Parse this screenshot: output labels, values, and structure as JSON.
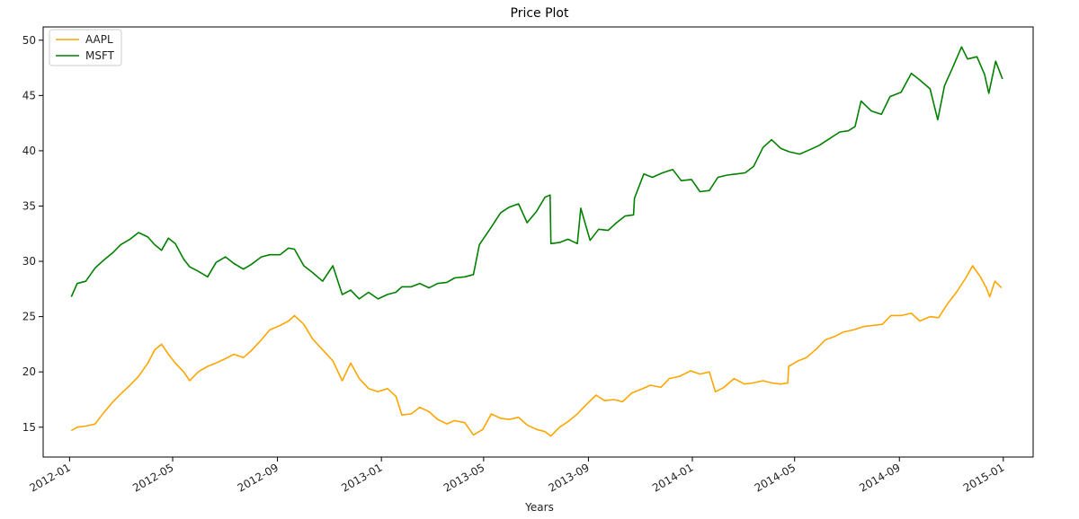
{
  "chart_data": {
    "type": "line",
    "title": "Price Plot",
    "xlabel": "Years",
    "ylabel": "",
    "xlim": [
      "2011-12-01",
      "2015-02-05"
    ],
    "ylim": [
      12.3,
      51.2
    ],
    "x_ticks": [
      "2012-01",
      "2012-05",
      "2012-09",
      "2013-01",
      "2013-05",
      "2013-09",
      "2014-01",
      "2014-05",
      "2014-09",
      "2015-01"
    ],
    "y_ticks": [
      15,
      20,
      25,
      30,
      35,
      40,
      45,
      50
    ],
    "grid": false,
    "legend_position": "top-left",
    "series": [
      {
        "name": "AAPL",
        "color": "#FFA500",
        "points": [
          [
            "2012-01-03",
            14.7
          ],
          [
            "2012-01-10",
            15.0
          ],
          [
            "2012-01-20",
            15.1
          ],
          [
            "2012-01-31",
            15.3
          ],
          [
            "2012-02-10",
            16.3
          ],
          [
            "2012-02-21",
            17.3
          ],
          [
            "2012-03-01",
            18.0
          ],
          [
            "2012-03-12",
            18.8
          ],
          [
            "2012-03-22",
            19.6
          ],
          [
            "2012-04-02",
            20.8
          ],
          [
            "2012-04-10",
            22.0
          ],
          [
            "2012-04-18",
            22.5
          ],
          [
            "2012-04-26",
            21.6
          ],
          [
            "2012-05-04",
            20.8
          ],
          [
            "2012-05-14",
            20.0
          ],
          [
            "2012-05-21",
            19.2
          ],
          [
            "2012-05-31",
            20.0
          ],
          [
            "2012-06-11",
            20.5
          ],
          [
            "2012-06-21",
            20.8
          ],
          [
            "2012-07-02",
            21.2
          ],
          [
            "2012-07-12",
            21.6
          ],
          [
            "2012-07-23",
            21.3
          ],
          [
            "2012-08-01",
            21.9
          ],
          [
            "2012-08-13",
            22.9
          ],
          [
            "2012-08-23",
            23.8
          ],
          [
            "2012-09-04",
            24.2
          ],
          [
            "2012-09-14",
            24.6
          ],
          [
            "2012-09-21",
            25.1
          ],
          [
            "2012-10-02",
            24.3
          ],
          [
            "2012-10-12",
            23.0
          ],
          [
            "2012-10-24",
            22.0
          ],
          [
            "2012-11-05",
            21.0
          ],
          [
            "2012-11-16",
            19.2
          ],
          [
            "2012-11-26",
            20.8
          ],
          [
            "2012-12-06",
            19.4
          ],
          [
            "2012-12-17",
            18.5
          ],
          [
            "2012-12-28",
            18.2
          ],
          [
            "2013-01-08",
            18.5
          ],
          [
            "2013-01-18",
            17.8
          ],
          [
            "2013-01-25",
            16.1
          ],
          [
            "2013-02-05",
            16.2
          ],
          [
            "2013-02-15",
            16.8
          ],
          [
            "2013-02-26",
            16.4
          ],
          [
            "2013-03-08",
            15.7
          ],
          [
            "2013-03-19",
            15.3
          ],
          [
            "2013-03-28",
            15.6
          ],
          [
            "2013-04-09",
            15.4
          ],
          [
            "2013-04-19",
            14.3
          ],
          [
            "2013-04-30",
            14.8
          ],
          [
            "2013-05-10",
            16.2
          ],
          [
            "2013-05-21",
            15.8
          ],
          [
            "2013-05-31",
            15.7
          ],
          [
            "2013-06-11",
            15.9
          ],
          [
            "2013-06-21",
            15.2
          ],
          [
            "2013-07-02",
            14.8
          ],
          [
            "2013-07-12",
            14.6
          ],
          [
            "2013-07-19",
            14.2
          ],
          [
            "2013-07-29",
            15.0
          ],
          [
            "2013-08-08",
            15.5
          ],
          [
            "2013-08-19",
            16.2
          ],
          [
            "2013-08-29",
            17.0
          ],
          [
            "2013-09-10",
            17.9
          ],
          [
            "2013-09-20",
            17.4
          ],
          [
            "2013-10-01",
            17.5
          ],
          [
            "2013-10-11",
            17.3
          ],
          [
            "2013-10-22",
            18.1
          ],
          [
            "2013-11-01",
            18.4
          ],
          [
            "2013-11-13",
            18.8
          ],
          [
            "2013-11-25",
            18.6
          ],
          [
            "2013-12-05",
            19.4
          ],
          [
            "2013-12-17",
            19.6
          ],
          [
            "2013-12-30",
            20.1
          ],
          [
            "2014-01-10",
            19.8
          ],
          [
            "2014-01-21",
            20.0
          ],
          [
            "2014-01-28",
            18.2
          ],
          [
            "2014-02-07",
            18.6
          ],
          [
            "2014-02-19",
            19.4
          ],
          [
            "2014-03-03",
            18.9
          ],
          [
            "2014-03-13",
            19.0
          ],
          [
            "2014-03-25",
            19.2
          ],
          [
            "2014-04-04",
            19.0
          ],
          [
            "2014-04-15",
            18.9
          ],
          [
            "2014-04-23",
            19.0
          ],
          [
            "2014-04-24",
            20.5
          ],
          [
            "2014-05-05",
            21.0
          ],
          [
            "2014-05-15",
            21.3
          ],
          [
            "2014-05-27",
            22.1
          ],
          [
            "2014-06-06",
            22.9
          ],
          [
            "2014-06-17",
            23.2
          ],
          [
            "2014-06-27",
            23.6
          ],
          [
            "2014-07-09",
            23.8
          ],
          [
            "2014-07-21",
            24.1
          ],
          [
            "2014-07-31",
            24.2
          ],
          [
            "2014-08-12",
            24.3
          ],
          [
            "2014-08-22",
            25.1
          ],
          [
            "2014-09-03",
            25.1
          ],
          [
            "2014-09-15",
            25.3
          ],
          [
            "2014-09-25",
            24.6
          ],
          [
            "2014-10-07",
            25.0
          ],
          [
            "2014-10-17",
            24.9
          ],
          [
            "2014-10-28",
            26.2
          ],
          [
            "2014-11-07",
            27.2
          ],
          [
            "2014-11-18",
            28.5
          ],
          [
            "2014-11-26",
            29.6
          ],
          [
            "2014-12-05",
            28.6
          ],
          [
            "2014-12-12",
            27.6
          ],
          [
            "2014-12-16",
            26.8
          ],
          [
            "2014-12-22",
            28.2
          ],
          [
            "2014-12-30",
            27.6
          ]
        ]
      },
      {
        "name": "MSFT",
        "color": "#008000",
        "points": [
          [
            "2012-01-03",
            26.8
          ],
          [
            "2012-01-10",
            28.0
          ],
          [
            "2012-01-20",
            28.2
          ],
          [
            "2012-01-31",
            29.4
          ],
          [
            "2012-02-10",
            30.1
          ],
          [
            "2012-02-21",
            30.8
          ],
          [
            "2012-03-01",
            31.5
          ],
          [
            "2012-03-12",
            32.0
          ],
          [
            "2012-03-22",
            32.6
          ],
          [
            "2012-04-02",
            32.2
          ],
          [
            "2012-04-10",
            31.5
          ],
          [
            "2012-04-18",
            31.0
          ],
          [
            "2012-04-26",
            32.1
          ],
          [
            "2012-05-04",
            31.6
          ],
          [
            "2012-05-14",
            30.2
          ],
          [
            "2012-05-21",
            29.5
          ],
          [
            "2012-05-31",
            29.1
          ],
          [
            "2012-06-11",
            28.6
          ],
          [
            "2012-06-21",
            29.9
          ],
          [
            "2012-07-02",
            30.4
          ],
          [
            "2012-07-12",
            29.8
          ],
          [
            "2012-07-23",
            29.3
          ],
          [
            "2012-08-01",
            29.7
          ],
          [
            "2012-08-13",
            30.4
          ],
          [
            "2012-08-23",
            30.6
          ],
          [
            "2012-09-04",
            30.6
          ],
          [
            "2012-09-14",
            31.2
          ],
          [
            "2012-09-21",
            31.1
          ],
          [
            "2012-10-02",
            29.6
          ],
          [
            "2012-10-12",
            29.0
          ],
          [
            "2012-10-24",
            28.2
          ],
          [
            "2012-11-05",
            29.6
          ],
          [
            "2012-11-16",
            27.0
          ],
          [
            "2012-11-26",
            27.4
          ],
          [
            "2012-12-06",
            26.6
          ],
          [
            "2012-12-17",
            27.2
          ],
          [
            "2012-12-28",
            26.6
          ],
          [
            "2013-01-08",
            27.0
          ],
          [
            "2013-01-18",
            27.2
          ],
          [
            "2013-01-25",
            27.7
          ],
          [
            "2013-02-05",
            27.7
          ],
          [
            "2013-02-15",
            28.0
          ],
          [
            "2013-02-26",
            27.6
          ],
          [
            "2013-03-08",
            28.0
          ],
          [
            "2013-03-19",
            28.1
          ],
          [
            "2013-03-28",
            28.5
          ],
          [
            "2013-04-09",
            28.6
          ],
          [
            "2013-04-19",
            28.8
          ],
          [
            "2013-04-26",
            31.5
          ],
          [
            "2013-05-10",
            33.1
          ],
          [
            "2013-05-21",
            34.4
          ],
          [
            "2013-05-31",
            34.9
          ],
          [
            "2013-06-11",
            35.2
          ],
          [
            "2013-06-21",
            33.5
          ],
          [
            "2013-07-02",
            34.5
          ],
          [
            "2013-07-12",
            35.8
          ],
          [
            "2013-07-18",
            36.0
          ],
          [
            "2013-07-19",
            31.6
          ],
          [
            "2013-07-29",
            31.7
          ],
          [
            "2013-08-08",
            32.0
          ],
          [
            "2013-08-19",
            31.6
          ],
          [
            "2013-08-23",
            34.8
          ],
          [
            "2013-09-03",
            31.9
          ],
          [
            "2013-09-13",
            32.9
          ],
          [
            "2013-09-24",
            32.8
          ],
          [
            "2013-10-04",
            33.5
          ],
          [
            "2013-10-14",
            34.1
          ],
          [
            "2013-10-24",
            34.2
          ],
          [
            "2013-10-25",
            35.7
          ],
          [
            "2013-11-05",
            37.9
          ],
          [
            "2013-11-15",
            37.6
          ],
          [
            "2013-11-27",
            38.0
          ],
          [
            "2013-12-09",
            38.3
          ],
          [
            "2013-12-19",
            37.3
          ],
          [
            "2013-12-31",
            37.4
          ],
          [
            "2014-01-10",
            36.3
          ],
          [
            "2014-01-21",
            36.4
          ],
          [
            "2014-01-31",
            37.6
          ],
          [
            "2014-02-11",
            37.8
          ],
          [
            "2014-02-21",
            37.9
          ],
          [
            "2014-03-04",
            38.0
          ],
          [
            "2014-03-14",
            38.6
          ],
          [
            "2014-03-25",
            40.3
          ],
          [
            "2014-04-04",
            41.0
          ],
          [
            "2014-04-15",
            40.2
          ],
          [
            "2014-04-25",
            39.9
          ],
          [
            "2014-05-07",
            39.7
          ],
          [
            "2014-05-19",
            40.1
          ],
          [
            "2014-05-30",
            40.5
          ],
          [
            "2014-06-11",
            41.1
          ],
          [
            "2014-06-23",
            41.7
          ],
          [
            "2014-07-03",
            41.8
          ],
          [
            "2014-07-11",
            42.2
          ],
          [
            "2014-07-18",
            44.5
          ],
          [
            "2014-07-30",
            43.6
          ],
          [
            "2014-08-11",
            43.3
          ],
          [
            "2014-08-21",
            44.9
          ],
          [
            "2014-09-03",
            45.3
          ],
          [
            "2014-09-15",
            47.0
          ],
          [
            "2014-09-25",
            46.4
          ],
          [
            "2014-10-07",
            45.6
          ],
          [
            "2014-10-16",
            42.8
          ],
          [
            "2014-10-24",
            45.9
          ],
          [
            "2014-11-03",
            47.6
          ],
          [
            "2014-11-13",
            49.4
          ],
          [
            "2014-11-20",
            48.3
          ],
          [
            "2014-12-01",
            48.5
          ],
          [
            "2014-12-10",
            46.9
          ],
          [
            "2014-12-15",
            45.2
          ],
          [
            "2014-12-23",
            48.1
          ],
          [
            "2014-12-31",
            46.5
          ]
        ]
      }
    ]
  }
}
